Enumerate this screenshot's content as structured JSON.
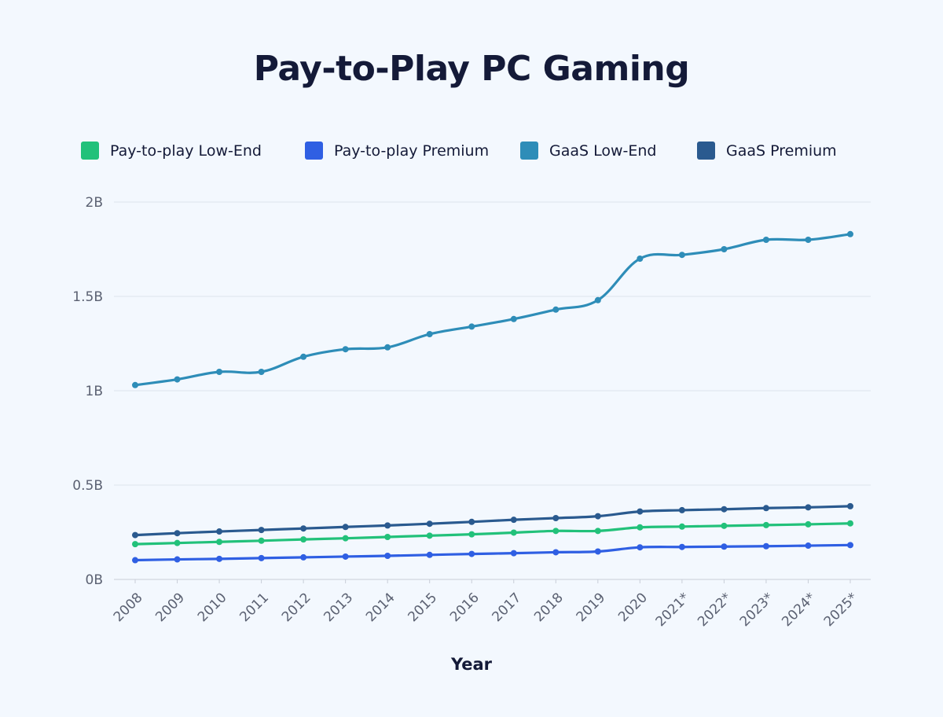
{
  "chart_data": {
    "type": "line",
    "title": "Pay-to-Play PC Gaming",
    "xlabel": "Year",
    "ylabel": "",
    "categories": [
      "2008",
      "2009",
      "2010",
      "2011",
      "2012",
      "2013",
      "2014",
      "2015",
      "2016",
      "2017",
      "2018",
      "2019",
      "2020",
      "2021*",
      "2022*",
      "2023*",
      "2024*",
      "2025*"
    ],
    "ylim": [
      0,
      2000000000
    ],
    "yticks": [
      {
        "value": 0,
        "label": "0B"
      },
      {
        "value": 500000000,
        "label": "0.5B"
      },
      {
        "value": 1000000000,
        "label": "1B"
      },
      {
        "value": 1500000000,
        "label": "1.5B"
      },
      {
        "value": 2000000000,
        "label": "2B"
      }
    ],
    "grid": true,
    "legend_position": "top",
    "series": [
      {
        "name": "Pay-to-play Low-End",
        "color": "#22c17a",
        "values": [
          187000000,
          193000000,
          199000000,
          205000000,
          212000000,
          218000000,
          225000000,
          232000000,
          239000000,
          248000000,
          257000000,
          257000000,
          276000000,
          280000000,
          284000000,
          288000000,
          292000000,
          297000000
        ]
      },
      {
        "name": "Pay-to-play Premium",
        "color": "#2f5fe3",
        "values": [
          102000000,
          106000000,
          109000000,
          113000000,
          117000000,
          121000000,
          125000000,
          130000000,
          135000000,
          139000000,
          144000000,
          148000000,
          170000000,
          172000000,
          174000000,
          176000000,
          179000000,
          182000000
        ]
      },
      {
        "name": "GaaS Low-End",
        "color": "#2e8db8",
        "values": [
          1030000000,
          1060000000,
          1100000000,
          1100000000,
          1180000000,
          1220000000,
          1230000000,
          1300000000,
          1340000000,
          1380000000,
          1430000000,
          1480000000,
          1700000000,
          1720000000,
          1750000000,
          1800000000,
          1800000000,
          1830000000
        ]
      },
      {
        "name": "GaaS Premium",
        "color": "#2a5a8f",
        "values": [
          235000000,
          245000000,
          254000000,
          262000000,
          270000000,
          278000000,
          286000000,
          295000000,
          305000000,
          316000000,
          325000000,
          335000000,
          360000000,
          367000000,
          372000000,
          378000000,
          382000000,
          388000000
        ]
      }
    ]
  },
  "legend": [
    {
      "label": "Pay-to-play Low-End",
      "color": "#22c17a"
    },
    {
      "label": "Pay-to-play Premium",
      "color": "#2f5fe3"
    },
    {
      "label": "GaaS Low-End",
      "color": "#2e8db8"
    },
    {
      "label": "GaaS Premium",
      "color": "#2a5a8f"
    }
  ]
}
